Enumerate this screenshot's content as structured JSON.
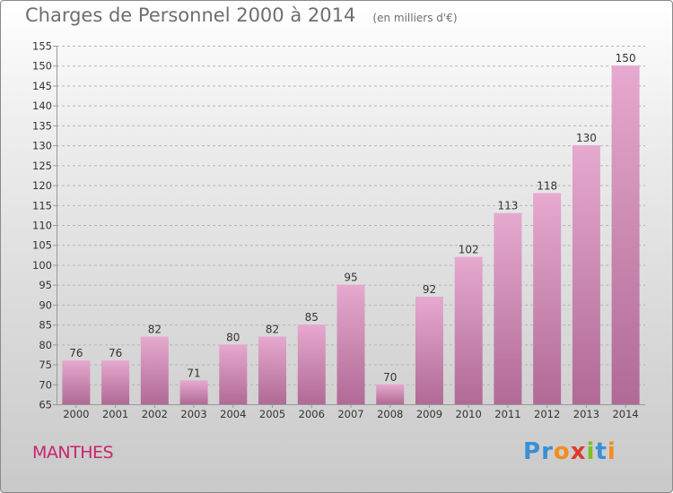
{
  "title": "Charges de Personnel 2000 à 2014",
  "subtitle": "(en milliers d'€)",
  "commune": "MANTHES",
  "logo": {
    "text": "Proxiti",
    "colors": [
      "#3a8fd6",
      "#3a8fd6",
      "#f28c1e",
      "#e03a2e",
      "#7bbf2a",
      "#3a8fd6",
      "#f28c1e"
    ]
  },
  "colors": {
    "bar_top": "#e6a9cf",
    "bar_bottom": "#b06a95",
    "grid": "#b5b5b5",
    "axis": "#999999"
  },
  "chart_data": {
    "type": "bar",
    "title": "Charges de Personnel 2000 à 2014",
    "subtitle": "(en milliers d'€)",
    "xlabel": "",
    "ylabel": "",
    "categories": [
      "2000",
      "2001",
      "2002",
      "2003",
      "2004",
      "2005",
      "2006",
      "2007",
      "2008",
      "2009",
      "2010",
      "2011",
      "2012",
      "2013",
      "2014"
    ],
    "values": [
      76,
      76,
      82,
      71,
      80,
      82,
      85,
      95,
      70,
      92,
      102,
      113,
      118,
      130,
      150
    ],
    "ylim": [
      65,
      155
    ],
    "yticks": [
      65,
      70,
      75,
      80,
      85,
      90,
      95,
      100,
      105,
      110,
      115,
      120,
      125,
      130,
      135,
      140,
      145,
      150,
      155
    ],
    "grid": true,
    "legend": "none"
  }
}
